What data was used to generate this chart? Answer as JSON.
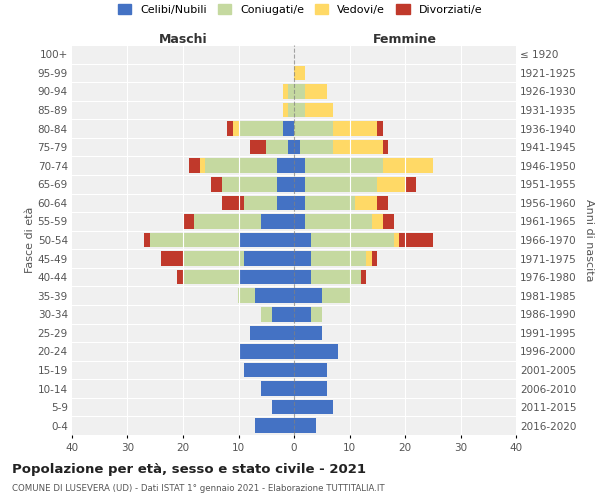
{
  "age_groups": [
    "0-4",
    "5-9",
    "10-14",
    "15-19",
    "20-24",
    "25-29",
    "30-34",
    "35-39",
    "40-44",
    "45-49",
    "50-54",
    "55-59",
    "60-64",
    "65-69",
    "70-74",
    "75-79",
    "80-84",
    "85-89",
    "90-94",
    "95-99",
    "100+"
  ],
  "birth_years": [
    "2016-2020",
    "2011-2015",
    "2006-2010",
    "2001-2005",
    "1996-2000",
    "1991-1995",
    "1986-1990",
    "1981-1985",
    "1976-1980",
    "1971-1975",
    "1966-1970",
    "1961-1965",
    "1956-1960",
    "1951-1955",
    "1946-1950",
    "1941-1945",
    "1936-1940",
    "1931-1935",
    "1926-1930",
    "1921-1925",
    "≤ 1920"
  ],
  "male": {
    "celibi": [
      7,
      4,
      6,
      9,
      10,
      8,
      4,
      7,
      10,
      9,
      10,
      6,
      3,
      3,
      3,
      1,
      2,
      0,
      0,
      0,
      0
    ],
    "coniugati": [
      0,
      0,
      0,
      0,
      0,
      0,
      2,
      3,
      10,
      11,
      16,
      12,
      6,
      10,
      13,
      4,
      8,
      1,
      1,
      0,
      0
    ],
    "vedovi": [
      0,
      0,
      0,
      0,
      0,
      0,
      0,
      0,
      0,
      0,
      0,
      0,
      0,
      0,
      1,
      0,
      1,
      1,
      1,
      0,
      0
    ],
    "divorziati": [
      0,
      0,
      0,
      0,
      0,
      0,
      0,
      0,
      1,
      4,
      1,
      2,
      4,
      2,
      2,
      3,
      1,
      0,
      0,
      0,
      0
    ]
  },
  "female": {
    "nubili": [
      4,
      7,
      6,
      6,
      8,
      5,
      3,
      5,
      3,
      3,
      3,
      2,
      2,
      2,
      2,
      1,
      0,
      0,
      0,
      0,
      0
    ],
    "coniugate": [
      0,
      0,
      0,
      0,
      0,
      0,
      2,
      5,
      9,
      10,
      15,
      12,
      9,
      13,
      14,
      6,
      7,
      2,
      2,
      0,
      0
    ],
    "vedove": [
      0,
      0,
      0,
      0,
      0,
      0,
      0,
      0,
      0,
      1,
      1,
      2,
      4,
      5,
      9,
      9,
      8,
      5,
      4,
      2,
      0
    ],
    "divorziate": [
      0,
      0,
      0,
      0,
      0,
      0,
      0,
      0,
      1,
      1,
      6,
      2,
      2,
      2,
      0,
      1,
      1,
      0,
      0,
      0,
      0
    ]
  },
  "colors": {
    "celibi": "#4472c4",
    "coniugati": "#c5d9a0",
    "vedovi": "#ffd966",
    "divorziati": "#c0392b"
  },
  "xlim": 40,
  "title": "Popolazione per età, sesso e stato civile - 2021",
  "subtitle": "COMUNE DI LUSEVERA (UD) - Dati ISTAT 1° gennaio 2021 - Elaborazione TUTTITALIA.IT",
  "ylabel": "Fasce di età",
  "ylabel_right": "Anni di nascita",
  "xlabel_left": "Maschi",
  "xlabel_right": "Femmine",
  "bg_color": "#f0f0f0",
  "legend_labels": [
    "Celibi/Nubili",
    "Coniugati/e",
    "Vedovi/e",
    "Divorziati/e"
  ]
}
